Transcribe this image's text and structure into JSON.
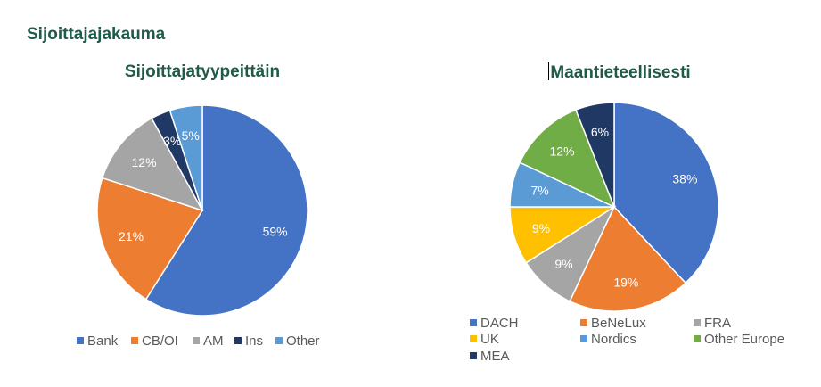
{
  "main_title": "Sijoittajajakauma",
  "chart_data": [
    {
      "type": "pie",
      "title": "Sijoittajatyypeittäin",
      "slices": [
        {
          "label": "Bank",
          "value": 59,
          "display": "59%",
          "color": "#4472C4"
        },
        {
          "label": "CB/OI",
          "value": 21,
          "display": "21%",
          "color": "#ED7D31"
        },
        {
          "label": "AM",
          "value": 12,
          "display": "12%",
          "color": "#A5A5A5"
        },
        {
          "label": "Ins",
          "value": 3,
          "display": "3%",
          "color": "#203864"
        },
        {
          "label": "Other",
          "value": 5,
          "display": "5%",
          "color": "#5B9BD5"
        }
      ],
      "legend_position": "bottom"
    },
    {
      "type": "pie",
      "title": "Maantieteellisesti",
      "slices": [
        {
          "label": "DACH",
          "value": 38,
          "display": "38%",
          "color": "#4472C4"
        },
        {
          "label": "BeNeLux",
          "value": 19,
          "display": "19%",
          "color": "#ED7D31"
        },
        {
          "label": "FRA",
          "value": 9,
          "display": "9%",
          "color": "#A5A5A5"
        },
        {
          "label": "UK",
          "value": 9,
          "display": "9%",
          "color": "#FFC000"
        },
        {
          "label": "Nordics",
          "value": 7,
          "display": "7%",
          "color": "#5B9BD5"
        },
        {
          "label": "Other Europe",
          "value": 12,
          "display": "12%",
          "color": "#70AD47"
        },
        {
          "label": "MEA",
          "value": 6,
          "display": "6%",
          "color": "#203864"
        }
      ],
      "legend_position": "bottom"
    }
  ]
}
